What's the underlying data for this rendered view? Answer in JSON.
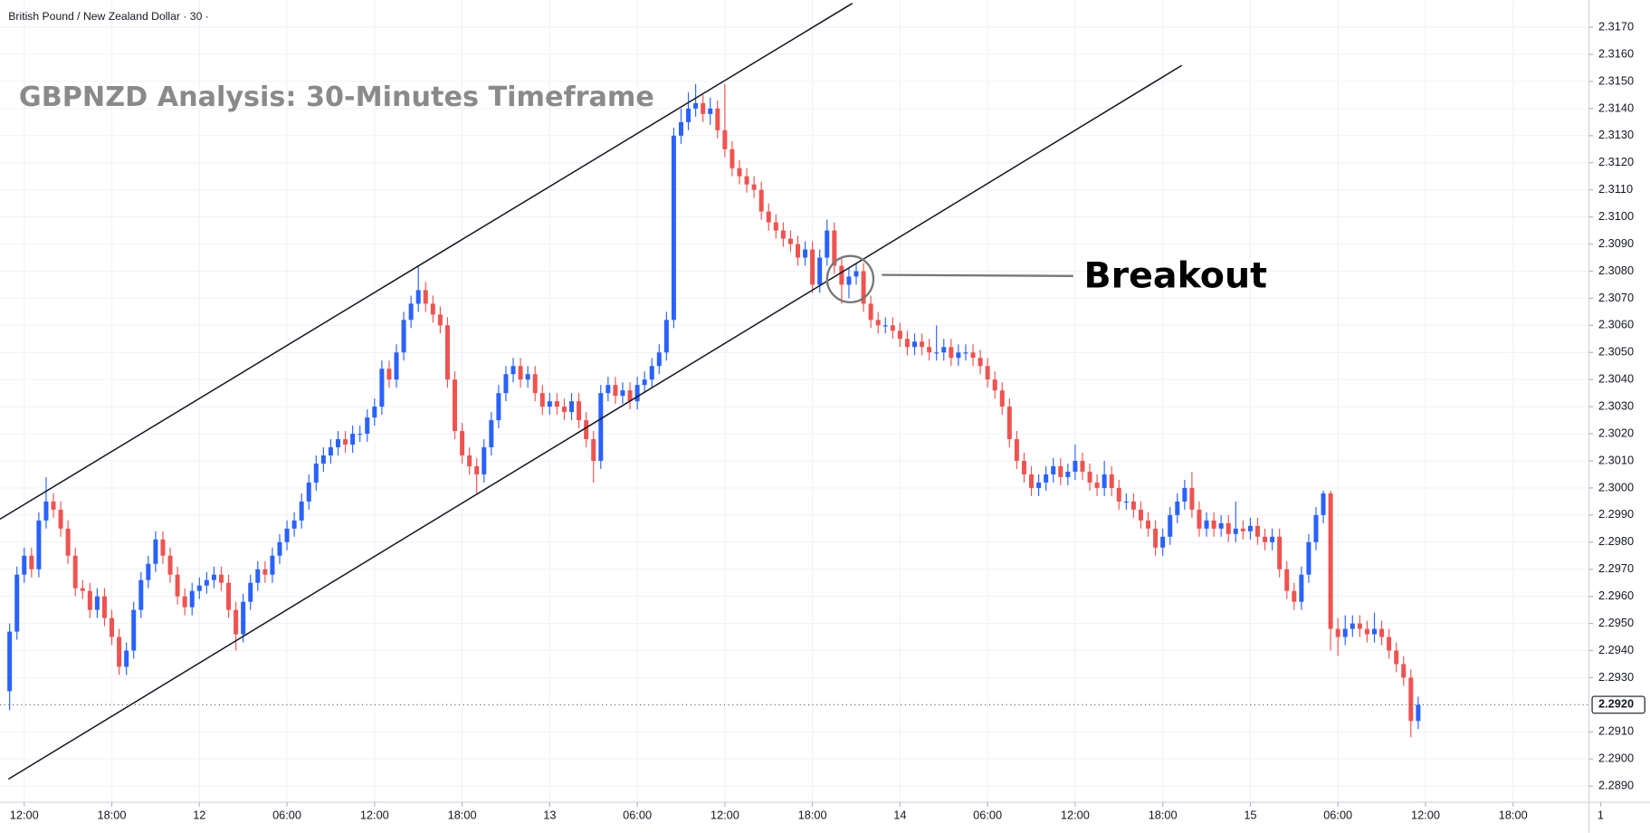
{
  "chart_data": {
    "type": "candlestick",
    "subtitle": "British Pound / New Zealand Dollar · 30 ·",
    "title": "GBPNZD Analysis: 30-Minutes Timeframe",
    "annotations": [
      "Breakout"
    ],
    "up_color": "#2962ff",
    "down_color": "#ef5350",
    "xlim": [
      -1.66,
      107.2
    ],
    "ylim": [
      2.2884,
      2.318
    ],
    "xticks": [
      {
        "value": 0,
        "label": "12:00"
      },
      {
        "value": 6,
        "label": "18:00"
      },
      12,
      {
        "value": 18,
        "label": "06:00"
      },
      {
        "value": 24,
        "label": "12:00"
      },
      {
        "value": 30,
        "label": "18:00"
      },
      {
        "value": 36,
        "label": "13"
      },
      {
        "value": 42,
        "label": "06:00"
      },
      {
        "value": 48,
        "label": "12:00"
      },
      {
        "value": 54,
        "label": "18:00"
      },
      {
        "value": 60,
        "label": "14"
      },
      {
        "value": 66,
        "label": "06:00"
      },
      {
        "value": 72,
        "label": "12:00"
      },
      {
        "value": 78,
        "label": "18:00"
      },
      {
        "value": 84,
        "label": "15"
      },
      {
        "value": 90,
        "label": "06:00"
      },
      {
        "value": 96,
        "label": "12:00"
      },
      {
        "value": 102,
        "label": "18:00"
      },
      {
        "value": 108,
        "label": "1"
      }
    ],
    "yticks": [
      {
        "value": 2.289,
        "label": "2.2890"
      },
      {
        "value": 2.29,
        "label": "2.2900"
      },
      {
        "value": 2.291,
        "label": "2.2910"
      },
      {
        "value": 2.293,
        "label": "2.2930"
      },
      {
        "value": 2.294,
        "label": "2.2940"
      },
      {
        "value": 2.295,
        "label": "2.2950"
      },
      {
        "value": 2.296,
        "label": "2.2960"
      },
      {
        "value": 2.297,
        "label": "2.2970"
      },
      {
        "value": 2.298,
        "label": "2.2980"
      },
      {
        "value": 2.299,
        "label": "2.2990"
      },
      {
        "value": 2.3,
        "label": "2.3000"
      },
      {
        "value": 2.301,
        "label": "2.3010"
      },
      {
        "value": 2.302,
        "label": "2.3020"
      },
      {
        "value": 2.303,
        "label": "2.3030"
      },
      {
        "value": 2.304,
        "label": "2.3040"
      },
      {
        "value": 2.305,
        "label": "2.3050"
      },
      {
        "value": 2.306,
        "label": "2.3060"
      },
      {
        "value": 2.307,
        "label": "2.3070"
      },
      {
        "value": 2.308,
        "label": "2.3080"
      },
      {
        "value": 2.309,
        "label": "2.3090"
      },
      {
        "value": 2.31,
        "label": "2.3100"
      },
      {
        "value": 2.311,
        "label": "2.3110"
      },
      {
        "value": 2.312,
        "label": "2.3120"
      },
      {
        "value": 2.313,
        "label": "2.3130"
      },
      {
        "value": 2.314,
        "label": "2.3140"
      },
      {
        "value": 2.315,
        "label": "2.3150"
      },
      {
        "value": 2.316,
        "label": "2.3160"
      },
      {
        "value": 2.317,
        "label": "2.3170"
      }
    ],
    "last_price": {
      "value": 2.292,
      "label": "2.2920"
    },
    "x": [
      -1,
      -0.5,
      0,
      0.5,
      1,
      1.5,
      2,
      2.5,
      3,
      3.5,
      4,
      4.5,
      5,
      5.5,
      6,
      6.5,
      7,
      7.5,
      8,
      8.5,
      9,
      9.5,
      10,
      10.5,
      11,
      11.5,
      12,
      12.5,
      13,
      13.5,
      14,
      14.5,
      15,
      15.5,
      16,
      16.5,
      17,
      17.5,
      18,
      18.5,
      19,
      19.5,
      20,
      20.5,
      21,
      21.5,
      22,
      22.5,
      23,
      23.5,
      24,
      24.5,
      25,
      25.5,
      26,
      26.5,
      27,
      27.5,
      28,
      28.5,
      29,
      29.5,
      30,
      30.5,
      31,
      31.5,
      32,
      32.5,
      33,
      33.5,
      34,
      34.5,
      35,
      35.5,
      36,
      36.5,
      37,
      37.5,
      38,
      38.5,
      39,
      39.5,
      40,
      40.5,
      41,
      41.5,
      42,
      42.5,
      43,
      43.5,
      44,
      44.5,
      45,
      45.5,
      46,
      46.5,
      47,
      47.5,
      48,
      48.5,
      49,
      49.5,
      50,
      50.5,
      51,
      51.5,
      52,
      52.5,
      53,
      53.5,
      54,
      54.5,
      55,
      55.5,
      56,
      56.5,
      57,
      57.5,
      58,
      58.5,
      59,
      59.5,
      60,
      60.5,
      61,
      61.5,
      62,
      62.5,
      63,
      63.5,
      64,
      64.5,
      65,
      65.5,
      66,
      66.5,
      67,
      67.5,
      68,
      68.5,
      69,
      69.5,
      70,
      70.5,
      71,
      71.5,
      72,
      72.5,
      73,
      73.5,
      74,
      74.5,
      75,
      75.5,
      76,
      76.5,
      77,
      77.5,
      78,
      78.5,
      79,
      79.5,
      80,
      80.5,
      81,
      81.5,
      82,
      82.5,
      83,
      83.5,
      84,
      84.5,
      85,
      85.5,
      86,
      86.5,
      87,
      87.5,
      88,
      88.5,
      89,
      89.5,
      90,
      90.5,
      91,
      91.5,
      92,
      92.5,
      93,
      93.5,
      94,
      94.5,
      95,
      95.5
    ],
    "open": [
      2.2925,
      2.2947,
      2.2968,
      2.2975,
      2.297,
      2.2988,
      2.2995,
      2.2992,
      2.2985,
      2.2975,
      2.2963,
      2.2962,
      2.2955,
      2.296,
      2.2952,
      2.2945,
      2.2934,
      2.294,
      2.2955,
      2.2966,
      2.2972,
      2.2981,
      2.2975,
      2.2968,
      2.296,
      2.2956,
      2.2962,
      2.2964,
      2.2966,
      2.2968,
      2.2965,
      2.2955,
      2.2946,
      2.2958,
      2.2965,
      2.297,
      2.2968,
      2.2975,
      2.298,
      2.2985,
      2.2988,
      2.2995,
      2.3002,
      2.3009,
      2.3012,
      2.3015,
      2.3018,
      2.3016,
      2.302,
      2.302,
      2.3026,
      2.303,
      2.3044,
      2.304,
      2.305,
      2.3062,
      2.3068,
      2.3073,
      2.3068,
      2.3064,
      2.306,
      2.304,
      2.3021,
      2.3012,
      2.3008,
      2.3005,
      2.3015,
      2.3025,
      2.3035,
      2.3042,
      2.3045,
      2.304,
      2.3042,
      2.3035,
      2.303,
      2.3032,
      2.303,
      2.3028,
      2.3032,
      2.3025,
      2.3018,
      2.301,
      2.3035,
      2.3038,
      2.3034,
      2.3036,
      2.3032,
      2.3038,
      2.304,
      2.3045,
      2.305,
      2.3062,
      2.313,
      2.3135,
      2.314,
      2.3142,
      2.3138,
      2.314,
      2.3132,
      2.3125,
      2.3118,
      2.3115,
      2.3112,
      2.311,
      2.3102,
      2.3098,
      2.3095,
      2.3092,
      2.309,
      2.3085,
      2.3088,
      2.3075,
      2.3085,
      2.3095,
      2.3082,
      2.3075,
      2.3078,
      2.308,
      2.3068,
      2.3062,
      2.306,
      2.306,
      2.3058,
      2.3055,
      2.3052,
      2.3054,
      2.3052,
      2.305,
      2.305,
      2.3052,
      2.3048,
      2.305,
      2.305,
      2.3048,
      2.3045,
      2.304,
      2.3036,
      2.303,
      2.3018,
      2.301,
      2.3005,
      2.3,
      2.3002,
      2.3005,
      2.3008,
      2.3004,
      2.3006,
      2.301,
      2.3006,
      2.3002,
      2.3,
      2.3005,
      2.3,
      2.2995,
      2.2995,
      2.2992,
      2.2988,
      2.2985,
      2.2978,
      2.2982,
      2.299,
      2.2995,
      2.3,
      2.2992,
      2.2985,
      2.2988,
      2.2985,
      2.2987,
      2.2983,
      2.2985,
      2.2984,
      2.2986,
      2.2982,
      2.298,
      2.2982,
      2.297,
      2.2962,
      2.2958,
      2.2968,
      2.298,
      2.299,
      2.2998,
      2.2948,
      2.2945,
      2.2948,
      2.295,
      2.2948,
      2.2946,
      2.2948,
      2.2945,
      2.294,
      2.2935,
      2.293,
      2.2914
    ],
    "high": [
      2.295,
      2.2971,
      2.2978,
      2.2978,
      2.2991,
      2.3004,
      2.2998,
      2.2995,
      2.2988,
      2.2978,
      2.2966,
      2.2965,
      2.2963,
      2.2963,
      2.2955,
      2.2948,
      2.2943,
      2.2958,
      2.2969,
      2.2975,
      2.2984,
      2.2984,
      2.2978,
      2.2971,
      2.2963,
      2.2965,
      2.2967,
      2.2969,
      2.2971,
      2.2971,
      2.2968,
      2.2958,
      2.2961,
      2.2968,
      2.2973,
      2.2973,
      2.2978,
      2.2983,
      2.2988,
      2.2991,
      2.2998,
      2.3005,
      2.3012,
      2.3015,
      2.3018,
      2.3021,
      2.3021,
      2.3023,
      2.3023,
      2.3029,
      2.3033,
      2.3047,
      2.3047,
      2.3053,
      2.3065,
      2.3071,
      2.3082,
      2.3076,
      2.3071,
      2.3067,
      2.3063,
      2.3043,
      2.3024,
      2.3015,
      2.3011,
      2.3018,
      2.3028,
      2.3038,
      2.3045,
      2.3048,
      2.3048,
      2.3045,
      2.3045,
      2.3038,
      2.3035,
      2.3035,
      2.3033,
      2.3035,
      2.3035,
      2.3028,
      2.3021,
      2.3038,
      2.3041,
      2.3041,
      2.3039,
      2.3039,
      2.3041,
      2.3043,
      2.3048,
      2.3053,
      2.3065,
      2.3133,
      2.314,
      2.3146,
      2.3149,
      2.3145,
      2.3144,
      2.3143,
      2.3149,
      2.3128,
      2.3121,
      2.3118,
      2.3115,
      2.3113,
      2.3105,
      2.3101,
      2.3098,
      2.3095,
      2.3093,
      2.3091,
      2.3091,
      2.3088,
      2.3099,
      2.3098,
      2.3085,
      2.3081,
      2.3083,
      2.3083,
      2.3071,
      2.3065,
      2.3063,
      2.3063,
      2.3061,
      2.3058,
      2.3057,
      2.3057,
      2.3055,
      2.306,
      2.3055,
      2.3055,
      2.3053,
      2.3053,
      2.3053,
      2.3051,
      2.3048,
      2.3043,
      2.3039,
      2.3033,
      2.3021,
      2.3013,
      2.3008,
      2.3005,
      2.3008,
      2.3011,
      2.3011,
      2.3009,
      2.3016,
      2.3013,
      2.3009,
      2.3005,
      2.301,
      2.3008,
      2.3003,
      2.2998,
      2.2998,
      2.2995,
      2.2991,
      2.2988,
      2.2985,
      2.2993,
      2.2998,
      2.3003,
      2.3006,
      2.2995,
      2.2991,
      2.2991,
      2.299,
      2.299,
      2.2995,
      2.2988,
      2.2989,
      2.2989,
      2.2985,
      2.2985,
      2.2985,
      2.2973,
      2.2965,
      2.2971,
      2.2983,
      2.2993,
      2.2999,
      2.2999,
      2.2952,
      2.2953,
      2.2953,
      2.2953,
      2.2951,
      2.2954,
      2.2951,
      2.2948,
      2.2943,
      2.2938,
      2.2933,
      2.2923
    ],
    "low": [
      2.2918,
      2.2944,
      2.2965,
      2.2967,
      2.2967,
      2.2985,
      2.2989,
      2.2982,
      2.2972,
      2.296,
      2.2959,
      2.2952,
      2.2952,
      2.2949,
      2.2942,
      2.2931,
      2.2931,
      2.2937,
      2.2952,
      2.2963,
      2.2969,
      2.2972,
      2.2965,
      2.2957,
      2.2953,
      2.2953,
      2.2959,
      2.2961,
      2.2963,
      2.2962,
      2.2952,
      2.294,
      2.2943,
      2.2955,
      2.2962,
      2.2965,
      2.2965,
      2.2972,
      2.2977,
      2.2982,
      2.2985,
      2.2992,
      2.2999,
      2.3006,
      2.3009,
      2.3012,
      2.3013,
      2.3013,
      2.3017,
      2.3017,
      2.3023,
      2.3027,
      2.3037,
      2.3037,
      2.3047,
      2.3059,
      2.3065,
      2.3065,
      2.3061,
      2.3057,
      2.3037,
      2.3018,
      2.3009,
      2.3005,
      2.2998,
      2.3002,
      2.3012,
      2.3022,
      2.3032,
      2.3039,
      2.3037,
      2.3037,
      2.3032,
      2.3027,
      2.3027,
      2.3027,
      2.3025,
      2.3025,
      2.3022,
      2.3015,
      2.3002,
      2.3007,
      2.3032,
      2.3031,
      2.3031,
      2.3029,
      2.3029,
      2.3035,
      2.3037,
      2.3042,
      2.3047,
      2.3059,
      2.3127,
      2.3132,
      2.3137,
      2.3135,
      2.3134,
      2.3129,
      2.3122,
      2.3115,
      2.3112,
      2.3109,
      2.3107,
      2.3099,
      2.3095,
      2.3092,
      2.3089,
      2.3087,
      2.3082,
      2.3082,
      2.3072,
      2.3072,
      2.3082,
      2.3079,
      2.3068,
      2.307,
      2.3075,
      2.3065,
      2.3059,
      2.3057,
      2.3057,
      2.3055,
      2.3052,
      2.3049,
      2.3049,
      2.3049,
      2.3047,
      2.3047,
      2.3047,
      2.3045,
      2.3045,
      2.3047,
      2.3045,
      2.3042,
      2.3037,
      2.3033,
      2.3027,
      2.3015,
      2.3007,
      2.3002,
      2.2997,
      2.2997,
      2.2999,
      2.3002,
      2.3001,
      2.3001,
      2.3003,
      2.3003,
      2.2999,
      2.2997,
      2.2997,
      2.2997,
      2.2992,
      2.2992,
      2.2989,
      2.2985,
      2.2982,
      2.2975,
      2.2975,
      2.2979,
      2.2987,
      2.2992,
      2.2989,
      2.2982,
      2.2982,
      2.2982,
      2.2982,
      2.298,
      2.298,
      2.2981,
      2.2981,
      2.2979,
      2.2977,
      2.2977,
      2.2967,
      2.2959,
      2.2955,
      2.2955,
      2.2965,
      2.2977,
      2.2987,
      2.294,
      2.2938,
      2.2942,
      2.2945,
      2.2945,
      2.2943,
      2.2943,
      2.2942,
      2.2937,
      2.2932,
      2.2927,
      2.2908,
      2.2911
    ],
    "close": [
      2.2947,
      2.2968,
      2.2975,
      2.297,
      2.2988,
      2.2995,
      2.2992,
      2.2985,
      2.2975,
      2.2963,
      2.2962,
      2.2955,
      2.296,
      2.2952,
      2.2945,
      2.2934,
      2.294,
      2.2955,
      2.2966,
      2.2972,
      2.2981,
      2.2975,
      2.2968,
      2.296,
      2.2956,
      2.2962,
      2.2964,
      2.2966,
      2.2968,
      2.2965,
      2.2955,
      2.2946,
      2.2958,
      2.2965,
      2.297,
      2.2968,
      2.2975,
      2.298,
      2.2985,
      2.2988,
      2.2995,
      2.3002,
      2.3009,
      2.3012,
      2.3015,
      2.3018,
      2.3016,
      2.302,
      2.302,
      2.3026,
      2.303,
      2.3044,
      2.304,
      2.305,
      2.3062,
      2.3068,
      2.3073,
      2.3068,
      2.3064,
      2.306,
      2.304,
      2.3021,
      2.3012,
      2.3008,
      2.3005,
      2.3015,
      2.3025,
      2.3035,
      2.3042,
      2.3045,
      2.304,
      2.3042,
      2.3035,
      2.303,
      2.3032,
      2.303,
      2.3028,
      2.3032,
      2.3025,
      2.3018,
      2.301,
      2.3035,
      2.3038,
      2.3034,
      2.3036,
      2.3032,
      2.3038,
      2.304,
      2.3045,
      2.305,
      2.3062,
      2.313,
      2.3135,
      2.314,
      2.3142,
      2.3138,
      2.314,
      2.3132,
      2.3125,
      2.3118,
      2.3115,
      2.3112,
      2.311,
      2.3102,
      2.3098,
      2.3095,
      2.3092,
      2.309,
      2.3085,
      2.3088,
      2.3075,
      2.3085,
      2.3095,
      2.3082,
      2.3075,
      2.3078,
      2.308,
      2.3068,
      2.3062,
      2.306,
      2.306,
      2.3058,
      2.3055,
      2.3052,
      2.3054,
      2.3052,
      2.305,
      2.305,
      2.3052,
      2.3048,
      2.305,
      2.305,
      2.3048,
      2.3045,
      2.304,
      2.3036,
      2.303,
      2.3018,
      2.301,
      2.3005,
      2.3,
      2.3002,
      2.3005,
      2.3008,
      2.3004,
      2.3006,
      2.301,
      2.3006,
      2.3002,
      2.3,
      2.3005,
      2.3,
      2.2995,
      2.2995,
      2.2992,
      2.2988,
      2.2985,
      2.2978,
      2.2982,
      2.299,
      2.2995,
      2.3,
      2.2992,
      2.2985,
      2.2988,
      2.2985,
      2.2987,
      2.2983,
      2.2985,
      2.2984,
      2.2986,
      2.2982,
      2.298,
      2.2982,
      2.297,
      2.2962,
      2.2958,
      2.2968,
      2.298,
      2.299,
      2.2998,
      2.2948,
      2.2945,
      2.2948,
      2.295,
      2.2948,
      2.2946,
      2.2948,
      2.2945,
      2.294,
      2.2935,
      2.293,
      2.2914,
      2.292
    ]
  }
}
